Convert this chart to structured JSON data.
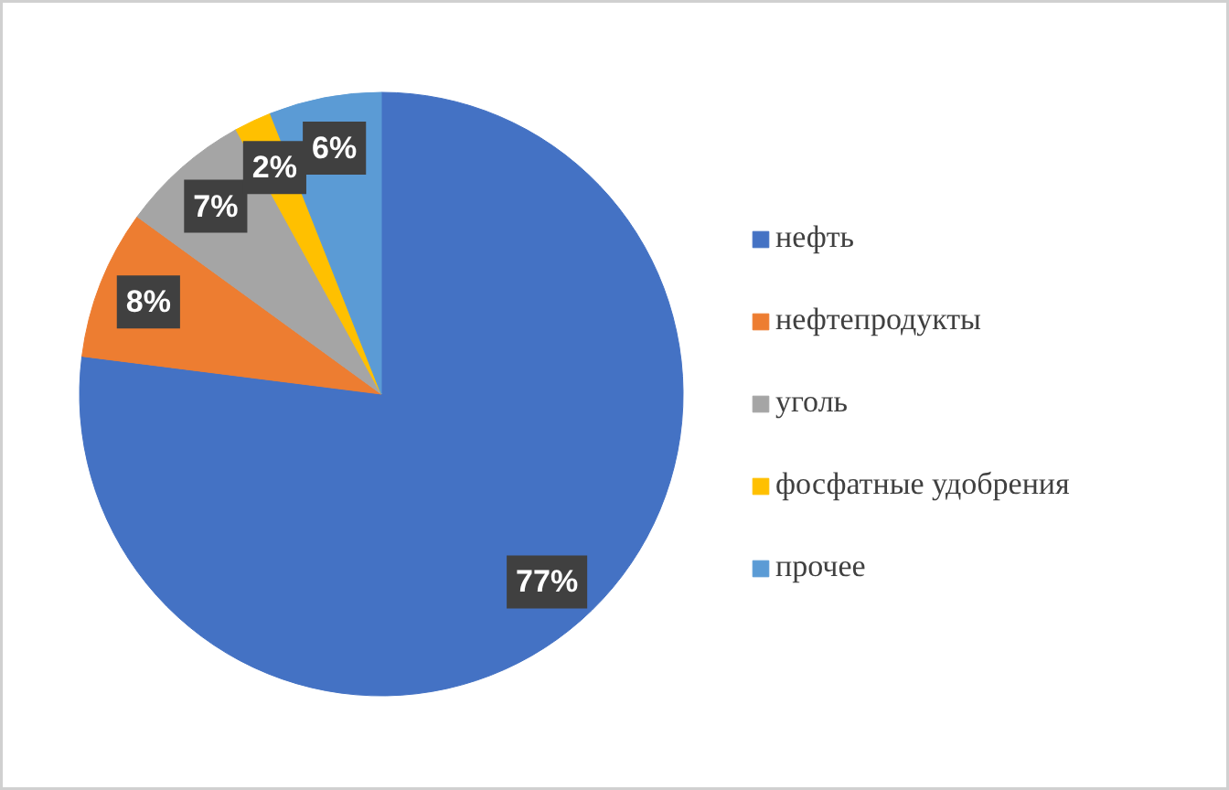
{
  "chart_data": {
    "type": "pie",
    "categories": [
      "нефть",
      "нефтепродукты",
      "уголь",
      "фосфатные удобрения",
      "прочее"
    ],
    "values": [
      77,
      8,
      7,
      2,
      6
    ],
    "colors": [
      "#4472c4",
      "#ed7d31",
      "#a5a5a5",
      "#ffc000",
      "#5b9bd5"
    ],
    "value_labels": [
      "77%",
      "8%",
      "7%",
      "2%",
      "6%"
    ],
    "legend": "right"
  }
}
